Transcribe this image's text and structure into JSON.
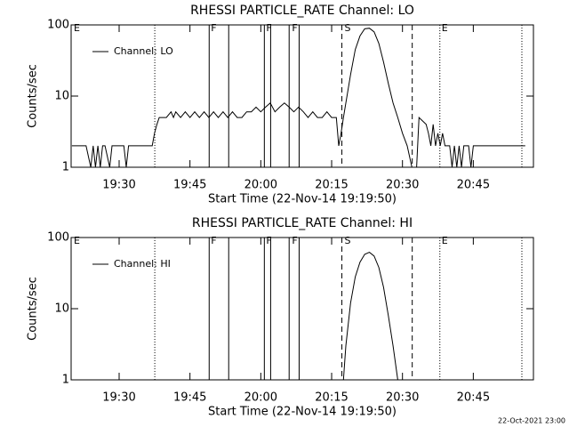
{
  "chart_data": [
    {
      "type": "line",
      "title": "RHESSI PARTICLE_RATE Channel: LO",
      "y_label": "Counts/sec",
      "x_label": "Start Time (22-Nov-14 19:19:50)",
      "log_y": true,
      "legend": "top-left",
      "xlim": [
        "19:19:50",
        "20:57:44"
      ],
      "xticks": [
        "19:30",
        "19:45",
        "20:00",
        "20:15",
        "20:30",
        "20:45"
      ],
      "ylim": [
        1,
        100
      ],
      "yticks": [
        1,
        10,
        100
      ],
      "flags": [
        {
          "time": "19:37:33",
          "style": "dotted"
        },
        {
          "time": "19:49:04",
          "style": "solid"
        },
        {
          "time": "19:53:12",
          "style": "solid"
        },
        {
          "time": "20:00:45",
          "style": "solid"
        },
        {
          "time": "20:02:05",
          "style": "solid"
        },
        {
          "time": "20:06:00",
          "style": "solid"
        },
        {
          "time": "20:08:07",
          "style": "solid"
        },
        {
          "time": "20:17:10",
          "style": "dashed"
        },
        {
          "time": "20:32:04",
          "style": "dashed"
        },
        {
          "time": "20:37:55",
          "style": "dotted"
        },
        {
          "time": "20:55:17",
          "style": "dotted"
        }
      ],
      "flag_labels": [
        {
          "text": "E",
          "time": "19:20:24"
        },
        {
          "text": "F",
          "time": "19:49:26"
        },
        {
          "text": "F",
          "time": "20:01:08"
        },
        {
          "text": "F",
          "time": "20:06:36"
        },
        {
          "text": "S",
          "time": "20:17:44"
        },
        {
          "text": "E",
          "time": "20:38:18"
        }
      ],
      "x": [
        "19:20:00",
        "19:22:00",
        "19:23:00",
        "19:24:00",
        "19:24:30",
        "19:25:00",
        "19:25:30",
        "19:26:00",
        "19:26:30",
        "19:27:00",
        "19:28:00",
        "19:28:30",
        "19:29:00",
        "19:31:00",
        "19:31:30",
        "19:32:00",
        "19:34:00",
        "19:36:00",
        "19:37:00",
        "19:37:30",
        "19:38:00",
        "19:38:30",
        "19:40:00",
        "19:41:00",
        "19:41:30",
        "19:42:00",
        "19:43:00",
        "19:44:00",
        "19:45:00",
        "19:46:00",
        "19:47:00",
        "19:48:00",
        "19:49:00",
        "19:50:00",
        "19:51:00",
        "19:52:00",
        "19:53:00",
        "19:54:00",
        "19:55:00",
        "19:56:00",
        "19:57:00",
        "19:58:00",
        "19:59:00",
        "20:00:00",
        "20:01:00",
        "20:02:00",
        "20:03:00",
        "20:04:00",
        "20:05:00",
        "20:06:00",
        "20:07:00",
        "20:08:00",
        "20:09:00",
        "20:10:00",
        "20:11:00",
        "20:12:00",
        "20:13:00",
        "20:14:00",
        "20:15:00",
        "20:16:00",
        "20:16:30",
        "20:17:00",
        "20:17:30",
        "20:18:00",
        "20:19:00",
        "20:20:00",
        "20:21:00",
        "20:22:00",
        "20:23:00",
        "20:24:00",
        "20:25:00",
        "20:26:00",
        "20:27:00",
        "20:28:00",
        "20:29:00",
        "20:30:00",
        "20:31:00",
        "20:32:00",
        "20:33:00",
        "20:33:30",
        "20:35:00",
        "20:35:30",
        "20:36:00",
        "20:36:30",
        "20:37:00",
        "20:37:30",
        "20:38:00",
        "20:38:30",
        "20:39:00",
        "20:40:00",
        "20:40:30",
        "20:41:00",
        "20:41:30",
        "20:42:00",
        "20:42:30",
        "20:43:00",
        "20:44:00",
        "20:44:30",
        "20:45:00",
        "20:50:00",
        "20:53:00",
        "20:56:00"
      ],
      "series": [
        {
          "name": "Channel: LO",
          "color": "#000000",
          "values": [
            2,
            2,
            2,
            1,
            2,
            1,
            2,
            1,
            2,
            2,
            1,
            2,
            2,
            2,
            1,
            2,
            2,
            2,
            2,
            3,
            4,
            5,
            5,
            6,
            5,
            6,
            5,
            6,
            5,
            6,
            5,
            6,
            5,
            6,
            5,
            6,
            5,
            6,
            5,
            5,
            6,
            6,
            7,
            6,
            7,
            8,
            6,
            7,
            8,
            7,
            6,
            7,
            6,
            5,
            6,
            5,
            5,
            6,
            5,
            5,
            2,
            3,
            5,
            8,
            20,
            45,
            70,
            88,
            90,
            80,
            55,
            30,
            15,
            8,
            5,
            3,
            2,
            1,
            1,
            5,
            4,
            3,
            2,
            4,
            2,
            3,
            2,
            3,
            2,
            2,
            1,
            2,
            1,
            2,
            1,
            2,
            2,
            1,
            2,
            2,
            2,
            2
          ]
        }
      ]
    },
    {
      "type": "line",
      "title": "RHESSI PARTICLE_RATE Channel: HI",
      "y_label": "Counts/sec",
      "x_label": "Start Time (22-Nov-14 19:19:50)",
      "log_y": true,
      "legend": "top-left",
      "xlim": [
        "19:19:50",
        "20:57:44"
      ],
      "xticks": [
        "19:30",
        "19:45",
        "20:00",
        "20:15",
        "20:30",
        "20:45"
      ],
      "ylim": [
        1,
        100
      ],
      "yticks": [
        1,
        10,
        100
      ],
      "flags": [
        {
          "time": "19:37:33",
          "style": "dotted"
        },
        {
          "time": "19:49:04",
          "style": "solid"
        },
        {
          "time": "19:53:12",
          "style": "solid"
        },
        {
          "time": "20:00:45",
          "style": "solid"
        },
        {
          "time": "20:02:05",
          "style": "solid"
        },
        {
          "time": "20:06:00",
          "style": "solid"
        },
        {
          "time": "20:08:07",
          "style": "solid"
        },
        {
          "time": "20:17:10",
          "style": "dashed"
        },
        {
          "time": "20:32:04",
          "style": "dashed"
        },
        {
          "time": "20:37:55",
          "style": "dotted"
        },
        {
          "time": "20:55:17",
          "style": "dotted"
        }
      ],
      "flag_labels": [
        {
          "text": "E",
          "time": "19:20:24"
        },
        {
          "text": "F",
          "time": "19:49:26"
        },
        {
          "text": "F",
          "time": "20:01:08"
        },
        {
          "text": "F",
          "time": "20:06:36"
        },
        {
          "text": "S",
          "time": "20:17:44"
        },
        {
          "text": "E",
          "time": "20:38:18"
        }
      ],
      "x": [
        "20:17:30",
        "20:18:00",
        "20:19:00",
        "20:20:00",
        "20:21:00",
        "20:22:00",
        "20:23:00",
        "20:24:00",
        "20:25:00",
        "20:26:00",
        "20:27:00",
        "20:28:00",
        "20:29:00"
      ],
      "series": [
        {
          "name": "Channel: HI",
          "color": "#000000",
          "values": [
            1,
            3,
            12,
            28,
            45,
            58,
            62,
            55,
            38,
            20,
            8,
            3,
            1
          ]
        }
      ]
    }
  ],
  "footer": "22-Oct-2021 23:00"
}
